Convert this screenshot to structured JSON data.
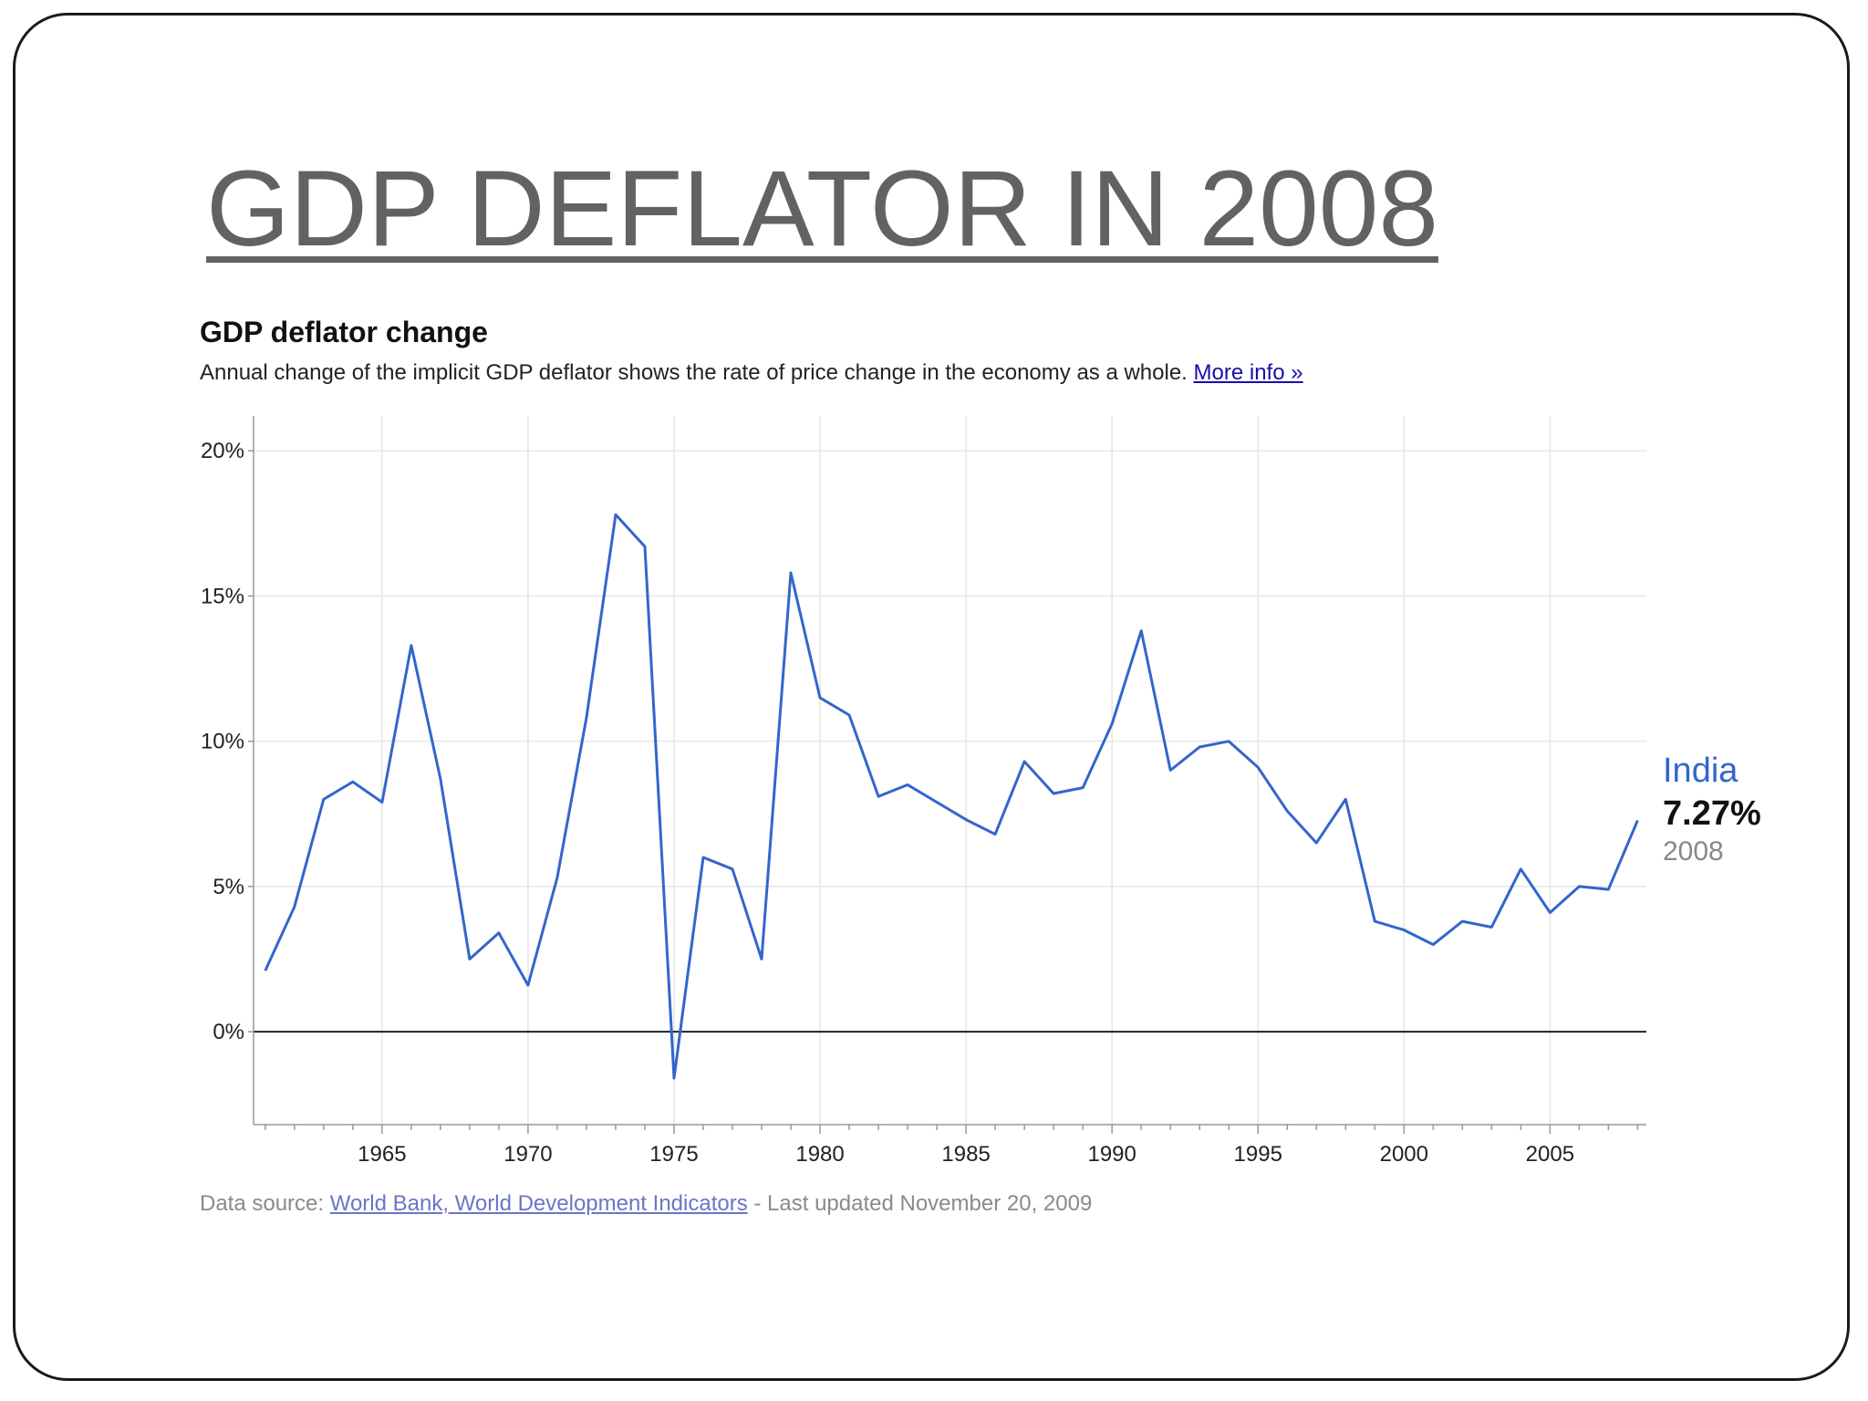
{
  "slide": {
    "title": "GDP DEFLATOR IN 2008"
  },
  "chart_heading": "GDP deflator change",
  "chart_description": "Annual change of the implicit GDP deflator shows the rate of price change in the economy as a whole.",
  "more_info_link": "More info »",
  "source": {
    "prefix": "Data source: ",
    "link": "World Bank, World Development Indicators",
    "suffix": " - Last updated November 20, 2009"
  },
  "colors": {
    "line": "#3366cc",
    "grid": "#e6e6e6",
    "zero_line": "#222222",
    "year_label": "#888888"
  },
  "chart_data": {
    "type": "line",
    "title": "GDP deflator change",
    "xlabel": "",
    "ylabel": "",
    "xlim": [
      1960.6,
      2008.3
    ],
    "ylim": [
      -3.2,
      21.2
    ],
    "y_ticks": [
      0,
      5,
      10,
      15,
      20
    ],
    "y_tick_labels": [
      "0%",
      "5%",
      "10%",
      "15%",
      "20%"
    ],
    "x_ticks": [
      1965,
      1970,
      1975,
      1980,
      1985,
      1990,
      1995,
      2000,
      2005
    ],
    "x_tick_labels": [
      "1965",
      "1970",
      "1975",
      "1980",
      "1985",
      "1990",
      "1995",
      "2000",
      "2005"
    ],
    "grid": true,
    "legend_position": "right-end",
    "series": [
      {
        "name": "India",
        "end_value_label": "7.27%",
        "end_year_label": "2008",
        "x": [
          1961,
          1962,
          1963,
          1964,
          1965,
          1966,
          1967,
          1968,
          1969,
          1970,
          1971,
          1972,
          1973,
          1974,
          1975,
          1976,
          1977,
          1978,
          1979,
          1980,
          1981,
          1982,
          1983,
          1984,
          1985,
          1986,
          1987,
          1988,
          1989,
          1990,
          1991,
          1992,
          1993,
          1994,
          1995,
          1996,
          1997,
          1998,
          1999,
          2000,
          2001,
          2002,
          2003,
          2004,
          2005,
          2006,
          2007,
          2008
        ],
        "values": [
          2.1,
          4.3,
          8.0,
          8.6,
          7.9,
          13.3,
          8.7,
          2.5,
          3.4,
          1.6,
          5.3,
          10.8,
          17.8,
          16.7,
          -1.6,
          6.0,
          5.6,
          2.5,
          15.8,
          11.5,
          10.9,
          8.1,
          8.5,
          7.9,
          7.3,
          6.8,
          9.3,
          8.2,
          8.4,
          10.6,
          13.8,
          9.0,
          9.8,
          10.0,
          9.1,
          7.6,
          6.5,
          8.0,
          3.8,
          3.5,
          3.0,
          3.8,
          3.6,
          5.6,
          4.1,
          5.0,
          4.9,
          7.27
        ]
      }
    ]
  }
}
